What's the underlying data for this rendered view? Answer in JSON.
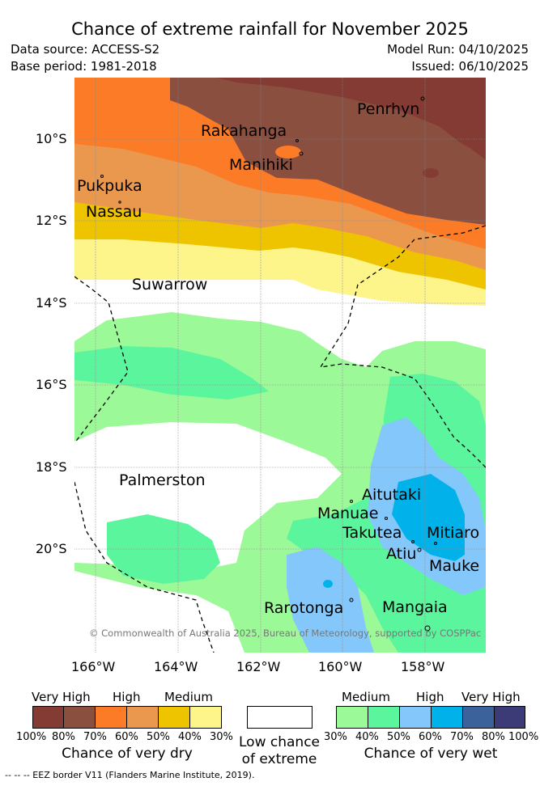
{
  "header": {
    "title": "Chance of extreme rainfall for November 2025",
    "data_source": "Data source: ACCESS-S2",
    "base_period": "Base period: 1981-2018",
    "model_run": "Model Run: 04/10/2025",
    "issued": "Issued: 06/10/2025"
  },
  "map": {
    "lat_labels": [
      "10°S",
      "12°S",
      "14°S",
      "16°S",
      "18°S",
      "20°S"
    ],
    "lon_labels": [
      "166°W",
      "164°W",
      "162°W",
      "160°W",
      "158°W"
    ],
    "places": {
      "penrhyn": "Penrhyn",
      "rakahanga": "Rakahanga",
      "manihiki": "Manihiki",
      "pukpuka": "Pukpuka",
      "nassau": "Nassau",
      "suwarrow": "Suwarrow",
      "palmerston": "Palmerston",
      "aitutaki": "Aitutaki",
      "manuae": "Manuae",
      "takutea": "Takutea",
      "mitiaro": "Mitiaro",
      "atiu": "Atiu",
      "mauke": "Mauke",
      "rarotonga": "Rarotonga",
      "mangaia": "Mangaia"
    },
    "copyright": "© Commonwealth of Australia 2025, Bureau of Meteorology, supported by COSPPac"
  },
  "colors": {
    "dry_very_high_1": "#843b33",
    "dry_very_high_2": "#8b4f40",
    "dry_high_1": "#fc7b26",
    "dry_high_2": "#eb984f",
    "dry_medium_1": "#eec400",
    "dry_medium_2": "#fdf48a",
    "low": "#ffffff",
    "wet_medium_1": "#9cf997",
    "wet_medium_2": "#5af59c",
    "wet_high_1": "#84c8fb",
    "wet_high_2": "#00b1ea",
    "wet_very_high_1": "#3b629b",
    "wet_very_high_2": "#3d3a78"
  },
  "legend": {
    "dry": {
      "headers": [
        "Very High",
        "High",
        "Medium"
      ],
      "ticks": [
        "100%",
        "80%",
        "70%",
        "60%",
        "50%",
        "40%",
        "30%"
      ],
      "caption": "Chance of very dry"
    },
    "low": {
      "caption_line1": "Low chance",
      "caption_line2": "of extreme"
    },
    "wet": {
      "headers": [
        "Medium",
        "High",
        "Very High"
      ],
      "ticks": [
        "30%",
        "40%",
        "50%",
        "60%",
        "70%",
        "80%",
        "100%"
      ],
      "caption": "Chance of very wet"
    }
  },
  "footnote": "--  --  -- EEZ border V11 (Flanders Marine Institute, 2019)."
}
